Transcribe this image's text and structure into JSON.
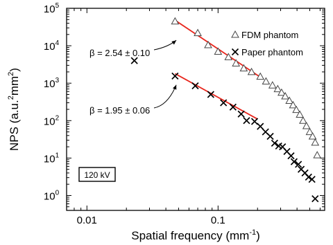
{
  "chart_data": {
    "type": "scatter",
    "x_scale": "log",
    "y_scale": "log",
    "xlim": [
      0.007,
      0.65
    ],
    "ylim": [
      0.4,
      100000
    ],
    "xlabel": "Spatial frequency (mm",
    "xlabel_sup": "-1",
    "xlabel_end": ")",
    "ylabel_parts": [
      "NPS (a.u.",
      "2",
      "mm",
      "2",
      ")"
    ],
    "x_ticks": [
      {
        "value": 0.01,
        "label": "0.01"
      },
      {
        "value": 0.1,
        "label": "0.1"
      }
    ],
    "y_ticks": [
      {
        "value": 1,
        "base": "10",
        "exp": "0"
      },
      {
        "value": 10,
        "base": "10",
        "exp": "1"
      },
      {
        "value": 100,
        "base": "10",
        "exp": "2"
      },
      {
        "value": 1000,
        "base": "10",
        "exp": "3"
      },
      {
        "value": 10000,
        "base": "10",
        "exp": "4"
      },
      {
        "value": 100000,
        "base": "10",
        "exp": "5"
      }
    ],
    "legend_position": "top-right",
    "legend": [
      {
        "marker": "triangle",
        "label": "FDM phantom"
      },
      {
        "marker": "x",
        "label": "Paper phantom"
      }
    ],
    "series": [
      {
        "name": "FDM phantom",
        "marker": "triangle",
        "points": [
          [
            0.047,
            45000
          ],
          [
            0.07,
            22000
          ],
          [
            0.084,
            10500
          ],
          [
            0.1,
            7000
          ],
          [
            0.12,
            5000
          ],
          [
            0.137,
            3400
          ],
          [
            0.157,
            2500
          ],
          [
            0.18,
            2000
          ],
          [
            0.21,
            1500
          ],
          [
            0.232,
            1120
          ],
          [
            0.26,
            880
          ],
          [
            0.285,
            700
          ],
          [
            0.305,
            560
          ],
          [
            0.325,
            450
          ],
          [
            0.35,
            340
          ],
          [
            0.373,
            260
          ],
          [
            0.395,
            195
          ],
          [
            0.42,
            145
          ],
          [
            0.445,
            100
          ],
          [
            0.472,
            72
          ],
          [
            0.5,
            50
          ],
          [
            0.526,
            38
          ],
          [
            0.55,
            26
          ],
          [
            0.57,
            12
          ]
        ],
        "fit": {
          "x": [
            0.047,
            0.22
          ],
          "y": [
            48000,
            1300
          ],
          "color": "#e8261d"
        }
      },
      {
        "name": "Paper phantom",
        "marker": "x",
        "points": [
          [
            0.023,
            4000
          ],
          [
            0.047,
            1550
          ],
          [
            0.067,
            850
          ],
          [
            0.088,
            500
          ],
          [
            0.11,
            300
          ],
          [
            0.13,
            230
          ],
          [
            0.15,
            150
          ],
          [
            0.165,
            100
          ],
          [
            0.19,
            95
          ],
          [
            0.21,
            70
          ],
          [
            0.23,
            50
          ],
          [
            0.25,
            38
          ],
          [
            0.27,
            25
          ],
          [
            0.29,
            21
          ],
          [
            0.31,
            20
          ],
          [
            0.335,
            15
          ],
          [
            0.36,
            11.5
          ],
          [
            0.38,
            8
          ],
          [
            0.41,
            6.8
          ],
          [
            0.43,
            5
          ],
          [
            0.46,
            4
          ],
          [
            0.49,
            3.1
          ],
          [
            0.52,
            2.7
          ],
          [
            0.55,
            0.82
          ]
        ],
        "fit": {
          "x": [
            0.047,
            0.2
          ],
          "y": [
            1800,
            110
          ],
          "color": "#e8261d"
        }
      }
    ],
    "annotations": [
      {
        "text": "β = 2.54 ± 0.10",
        "arrow_to": [
          0.048,
          14000
        ]
      },
      {
        "text": "β = 1.95 ± 0.06",
        "arrow_to": [
          0.048,
          900
        ]
      }
    ],
    "boxed_label": "120 kV"
  }
}
